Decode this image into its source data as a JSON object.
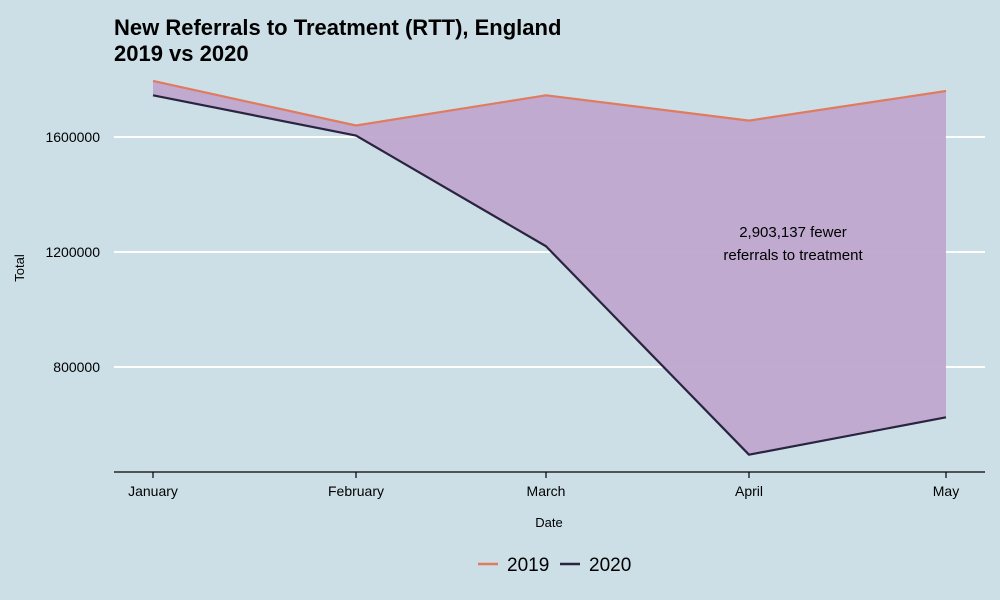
{
  "chart_data": {
    "type": "line",
    "title": "New Referrals to Treatment (RTT), England",
    "subtitle": "2019 vs 2020",
    "xlabel": "Date",
    "ylabel": "Total",
    "categories": [
      "January",
      "February",
      "March",
      "April",
      "May"
    ],
    "series": [
      {
        "name": "2019",
        "color": "#e07b5f",
        "values": [
          1795000,
          1640000,
          1745000,
          1657000,
          1760000
        ]
      },
      {
        "name": "2020",
        "color": "#2a2440",
        "values": [
          1745000,
          1605000,
          1220000,
          495000,
          625000
        ]
      }
    ],
    "fill_between": {
      "color": "#bfa6cd"
    },
    "ylim": [
      430000,
      1900000
    ],
    "yticks": [
      800000,
      1200000,
      1600000
    ],
    "ytick_labels": [
      "800000",
      "1200000",
      "1600000"
    ],
    "annotation": {
      "lines": [
        "2,903,137 fewer",
        "referrals to treatment"
      ],
      "x_category": "April",
      "y_value": 1210000
    },
    "grid": {
      "horizontal": true,
      "vertical": false,
      "color": "#ffffff"
    },
    "legend": {
      "position": "bottom"
    }
  }
}
